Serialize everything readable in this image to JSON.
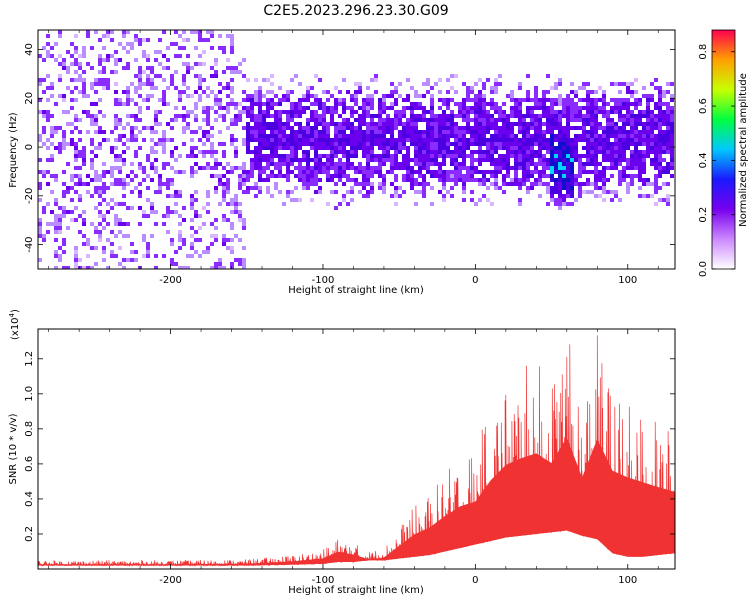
{
  "title": "C2E5.2023.296.23.30.G09",
  "chart_data": [
    {
      "type": "heatmap",
      "xlabel": "Height of straight line (km)",
      "ylabel": "Frequency (Hz)",
      "xlim": [
        -287,
        131
      ],
      "ylim": [
        -50,
        48
      ],
      "x_ticks": [
        -200,
        -100,
        0,
        100
      ],
      "y_ticks": [
        -40,
        -20,
        0,
        20,
        40
      ],
      "colorbar": {
        "label": "Normalized spectral amplitude",
        "range": [
          0,
          0.88
        ],
        "ticks": [
          0.0,
          0.2,
          0.4,
          0.6,
          0.8
        ],
        "colors": [
          "#ffffff",
          "#cc88ff",
          "#7700ee",
          "#1a1aff",
          "#00c8ff",
          "#00ff40",
          "#c8ff00",
          "#ffa000",
          "#ff0050"
        ]
      },
      "colors": {
        "low": "#d9b8ff",
        "mid": "#6a00ee",
        "high": "#1010cc",
        "peak": "#00d4ff"
      },
      "description_regions": [
        {
          "x_range": [
            -287,
            -150
          ],
          "freq_range": [
            -50,
            48
          ],
          "level": 0.12
        },
        {
          "x_range": [
            -150,
            131
          ],
          "freq_range": [
            -15,
            20
          ],
          "level": 0.3
        },
        {
          "x_range": [
            50,
            65
          ],
          "freq_range": [
            -20,
            5
          ],
          "level": 0.5
        }
      ]
    },
    {
      "type": "line",
      "xlabel": "Height of straight line (km)",
      "ylabel": "SNR (10 * v/v)",
      "yscale_label": "(x10",
      "yscale_exp": "4",
      "yscale_close": ")",
      "xlim": [
        -287,
        131
      ],
      "ylim": [
        0,
        13700
      ],
      "x_ticks": [
        -200,
        -100,
        0,
        100
      ],
      "y_ticks": [
        0.2,
        0.4,
        0.6,
        0.8,
        1.0,
        1.2
      ],
      "color": "#f03232",
      "envelope": {
        "x": [
          -287,
          -200,
          -150,
          -120,
          -100,
          -90,
          -80,
          -70,
          -60,
          -50,
          -40,
          -30,
          -20,
          -10,
          0,
          10,
          20,
          30,
          40,
          50,
          60,
          70,
          80,
          90,
          100,
          110,
          120,
          131
        ],
        "y_upper": [
          500,
          500,
          550,
          800,
          1100,
          1800,
          1500,
          1000,
          1200,
          2400,
          3600,
          4300,
          5500,
          6500,
          7000,
          9200,
          10800,
          11500,
          12000,
          11000,
          13700,
          9500,
          13500,
          10200,
          9500,
          9000,
          8500,
          8000
        ],
        "y_lower": [
          200,
          200,
          200,
          250,
          300,
          400,
          400,
          500,
          500,
          600,
          700,
          800,
          1000,
          1200,
          1400,
          1600,
          1800,
          1900,
          2000,
          2100,
          2200,
          1900,
          1700,
          900,
          700,
          700,
          800,
          900
        ]
      }
    }
  ]
}
